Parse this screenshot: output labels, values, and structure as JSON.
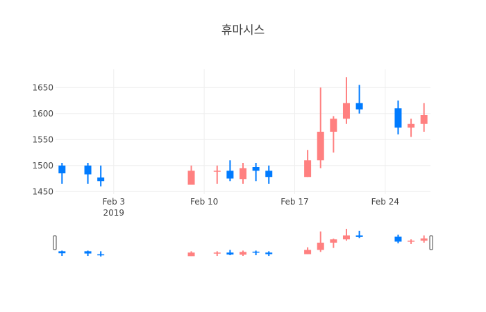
{
  "chart_data": {
    "type": "candlestick",
    "title": "휴마시스",
    "colors": {
      "increasing": "#FF8080",
      "decreasing": "#007BFF"
    },
    "ylim": [
      1445,
      1685
    ],
    "y_ticks": [
      1450,
      1500,
      1550,
      1600,
      1650
    ],
    "x_ticks": [
      {
        "date": "2019-02-03",
        "label": "Feb 3",
        "sublabel": "2019"
      },
      {
        "date": "2019-02-10",
        "label": "Feb 10"
      },
      {
        "date": "2019-02-17",
        "label": "Feb 17"
      },
      {
        "date": "2019-02-24",
        "label": "Feb 24"
      }
    ],
    "x_range": [
      "2019-01-29T12:00",
      "2019-02-27T12:00"
    ],
    "rangeslider": true,
    "candles": [
      {
        "date": "2019-01-30",
        "open": 1500,
        "high": 1505,
        "low": 1465,
        "close": 1485
      },
      {
        "date": "2019-02-01",
        "open": 1500,
        "high": 1505,
        "low": 1465,
        "close": 1483
      },
      {
        "date": "2019-02-02",
        "open": 1477,
        "high": 1500,
        "low": 1460,
        "close": 1470
      },
      {
        "date": "2019-02-09",
        "open": 1463,
        "high": 1500,
        "low": 1463,
        "close": 1490
      },
      {
        "date": "2019-02-11",
        "open": 1488,
        "high": 1500,
        "low": 1465,
        "close": 1490
      },
      {
        "date": "2019-02-12",
        "open": 1490,
        "high": 1510,
        "low": 1470,
        "close": 1475
      },
      {
        "date": "2019-02-13",
        "open": 1474,
        "high": 1505,
        "low": 1465,
        "close": 1495
      },
      {
        "date": "2019-02-14",
        "open": 1497,
        "high": 1505,
        "low": 1470,
        "close": 1490
      },
      {
        "date": "2019-02-15",
        "open": 1490,
        "high": 1500,
        "low": 1465,
        "close": 1478
      },
      {
        "date": "2019-02-18",
        "open": 1478,
        "high": 1530,
        "low": 1478,
        "close": 1510
      },
      {
        "date": "2019-02-19",
        "open": 1510,
        "high": 1650,
        "low": 1495,
        "close": 1565
      },
      {
        "date": "2019-02-20",
        "open": 1565,
        "high": 1595,
        "low": 1525,
        "close": 1590
      },
      {
        "date": "2019-02-21",
        "open": 1590,
        "high": 1670,
        "low": 1580,
        "close": 1620
      },
      {
        "date": "2019-02-22",
        "open": 1620,
        "high": 1655,
        "low": 1600,
        "close": 1608
      },
      {
        "date": "2019-02-25",
        "open": 1610,
        "high": 1625,
        "low": 1560,
        "close": 1573
      },
      {
        "date": "2019-02-26",
        "open": 1573,
        "high": 1590,
        "low": 1555,
        "close": 1580
      },
      {
        "date": "2019-02-27",
        "open": 1580,
        "high": 1620,
        "low": 1565,
        "close": 1597
      }
    ]
  }
}
